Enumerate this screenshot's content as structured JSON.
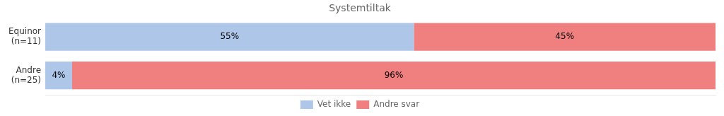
{
  "chart_data": {
    "type": "bar",
    "title": "Systemtiltak",
    "orientation": "horizontal",
    "stacked": true,
    "categories": [
      "Equinor\n(n=11)",
      "Andre\n(n=25)"
    ],
    "series": [
      {
        "name": "Vet ikke",
        "color": "#aec6e8",
        "values": [
          55,
          4
        ],
        "value_labels": [
          "55%",
          "4%"
        ]
      },
      {
        "name": "Andre svar",
        "color": "#f08080",
        "values": [
          45,
          96
        ],
        "value_labels": [
          "45%",
          "96%"
        ]
      }
    ],
    "xlim": [
      0,
      100
    ],
    "grid": false,
    "legend": "bottom",
    "data_labels": true,
    "tick_labels": "y"
  }
}
